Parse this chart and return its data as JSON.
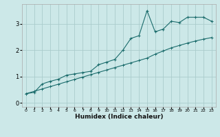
{
  "title": "",
  "xlabel": "Humidex (Indice chaleur)",
  "ylabel": "",
  "bg_color": "#cce8e8",
  "grid_color": "#aacccc",
  "line_color": "#1a6b6b",
  "xlim": [
    -0.5,
    23.5
  ],
  "ylim": [
    -0.15,
    3.75
  ],
  "yticks": [
    0,
    1,
    2,
    3
  ],
  "xticks": [
    0,
    1,
    2,
    3,
    4,
    5,
    6,
    7,
    8,
    9,
    10,
    11,
    12,
    13,
    14,
    15,
    16,
    17,
    18,
    19,
    20,
    21,
    22,
    23
  ],
  "humidex_x": [
    0,
    1,
    2,
    3,
    4,
    5,
    6,
    7,
    8,
    9,
    10,
    11,
    12,
    13,
    14,
    15,
    16,
    17,
    18,
    19,
    20,
    21,
    22,
    23
  ],
  "jagged_y": [
    0.35,
    0.4,
    0.72,
    0.82,
    0.9,
    1.05,
    1.1,
    1.15,
    1.2,
    1.45,
    1.55,
    1.65,
    2.0,
    2.45,
    2.55,
    3.5,
    2.7,
    2.8,
    3.1,
    3.05,
    3.25,
    3.25,
    3.25,
    3.1
  ],
  "trend_y": [
    0.35,
    0.44,
    0.53,
    0.62,
    0.71,
    0.8,
    0.89,
    0.98,
    1.07,
    1.16,
    1.25,
    1.34,
    1.43,
    1.52,
    1.61,
    1.7,
    1.85,
    1.97,
    2.09,
    2.18,
    2.27,
    2.35,
    2.42,
    2.48
  ]
}
